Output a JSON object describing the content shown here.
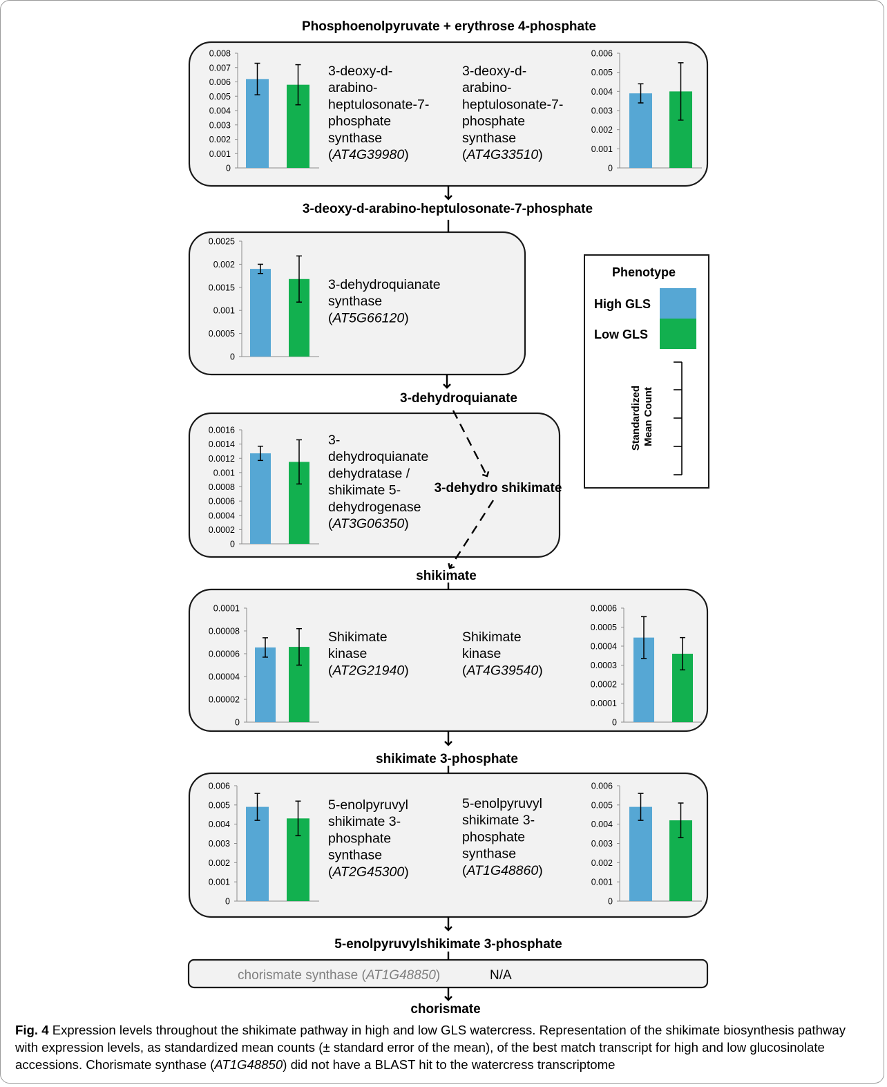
{
  "colors": {
    "high": "#56a7d4",
    "low": "#12b04f",
    "panel_bg": "#f2f2f2",
    "panel_border": "#1a1a1a",
    "unavailable_text": "#7f7f7f"
  },
  "pathway": {
    "start": "Phosphoenolpyruvate +  erythrose 4-phosphate",
    "dahp": "3-deoxy-d-arabino-heptulosonate-7-phosphate",
    "dhq": "3-dehydroquianate",
    "dhs": "3-dehydro shikimate",
    "shikimate": "shikimate",
    "s3p": "shikimate 3-phosphate",
    "eps3p": "5-enolpyruvylshikimate 3-phosphate",
    "end": "chorismate"
  },
  "legend": {
    "title": "Phenotype",
    "high_label": "High GLS",
    "low_label": "Low GLS",
    "scale_label_line1": "Standardized",
    "scale_label_line2": "Mean Count"
  },
  "chorismate": {
    "enzyme": "chorismate synthase (",
    "gene": "AT1G48850",
    "close": ")",
    "value": "N/A"
  },
  "caption": {
    "label": "Fig. 4",
    "text_a": " Expression levels throughout the shikimate pathway in high and low GLS watercress. Representation of the shikimate biosynthesis pathway with expression levels, as standardized mean counts (± standard error of the mean), of the best match transcript for high and low glucosinolate accessions. Chorismate synthase (",
    "gene": "AT1G48850",
    "text_b": ") did not have a BLAST hit to the watercress transcriptome"
  },
  "chart_data": [
    {
      "type": "bar",
      "enzyme": [
        "3-deoxy-d-",
        "arabino-",
        "heptulosonate-7-",
        "phosphate",
        "synthase"
      ],
      "gene": "AT4G39980",
      "categories": [
        "High GLS",
        "Low GLS"
      ],
      "values": [
        0.0062,
        0.0058
      ],
      "errors": [
        0.0011,
        0.0014
      ],
      "ylim": [
        0,
        0.008
      ],
      "yticks": [
        "0",
        "0.001",
        "0.002",
        "0.003",
        "0.004",
        "0.005",
        "0.006",
        "0.007",
        "0.008"
      ]
    },
    {
      "type": "bar",
      "enzyme": [
        "3-deoxy-d-",
        "arabino-",
        "heptulosonate-7-",
        "phosphate",
        "synthase"
      ],
      "gene": "AT4G33510",
      "categories": [
        "High GLS",
        "Low GLS"
      ],
      "values": [
        0.0039,
        0.004
      ],
      "errors": [
        0.0005,
        0.0015
      ],
      "ylim": [
        0,
        0.006
      ],
      "yticks": [
        "0",
        "0.001",
        "0.002",
        "0.003",
        "0.004",
        "0.005",
        "0.006"
      ]
    },
    {
      "type": "bar",
      "enzyme": [
        "3-dehydroquianate",
        "synthase"
      ],
      "gene": "AT5G66120",
      "categories": [
        "High GLS",
        "Low GLS"
      ],
      "values": [
        0.0019,
        0.00168
      ],
      "errors": [
        0.0001,
        0.0005
      ],
      "ylim": [
        0,
        0.0025
      ],
      "yticks": [
        "0",
        "0.0005",
        "0.001",
        "0.0015",
        "0.002",
        "0.0025"
      ]
    },
    {
      "type": "bar",
      "enzyme": [
        "3-",
        "dehydroquianate",
        "dehydratase /",
        "shikimate 5-",
        "dehydrogenase"
      ],
      "gene": "AT3G06350",
      "categories": [
        "High GLS",
        "Low GLS"
      ],
      "values": [
        0.00127,
        0.00115
      ],
      "errors": [
        0.0001,
        0.00031
      ],
      "ylim": [
        0,
        0.0016
      ],
      "yticks": [
        "0",
        "0.0002",
        "0.0004",
        "0.0006",
        "0.0008",
        "0.001",
        "0.0012",
        "0.0014",
        "0.0016"
      ]
    },
    {
      "type": "bar",
      "enzyme": [
        "Shikimate",
        "kinase"
      ],
      "gene": "AT2G21940",
      "categories": [
        "High GLS",
        "Low GLS"
      ],
      "values": [
        6.55e-05,
        6.6e-05
      ],
      "errors": [
        8.5e-06,
        1.6e-05
      ],
      "ylim": [
        0,
        0.0001
      ],
      "yticks": [
        "0",
        "0.00002",
        "0.00004",
        "0.00006",
        "0.00008",
        "0.0001"
      ]
    },
    {
      "type": "bar",
      "enzyme": [
        "Shikimate",
        "kinase"
      ],
      "gene": "AT4G39540",
      "categories": [
        "High GLS",
        "Low GLS"
      ],
      "values": [
        0.000445,
        0.00036
      ],
      "errors": [
        0.00011,
        8.5e-05
      ],
      "ylim": [
        0,
        0.0006
      ],
      "yticks": [
        "0",
        "0.0001",
        "0.0002",
        "0.0003",
        "0.0004",
        "0.0005",
        "0.0006"
      ]
    },
    {
      "type": "bar",
      "enzyme": [
        "5-enolpyruvyl",
        "shikimate 3-",
        "phosphate",
        "synthase"
      ],
      "gene": "AT2G45300",
      "categories": [
        "High GLS",
        "Low GLS"
      ],
      "values": [
        0.0049,
        0.0043
      ],
      "errors": [
        0.0007,
        0.0009
      ],
      "ylim": [
        0,
        0.006
      ],
      "yticks": [
        "0",
        "0.001",
        "0.002",
        "0.003",
        "0.004",
        "0.005",
        "0.006"
      ]
    },
    {
      "type": "bar",
      "enzyme": [
        "5-enolpyruvyl",
        "shikimate 3-",
        "phosphate",
        "synthase"
      ],
      "gene": "AT1G48860",
      "categories": [
        "High GLS",
        "Low GLS"
      ],
      "values": [
        0.0049,
        0.0042
      ],
      "errors": [
        0.0007,
        0.0009
      ],
      "ylim": [
        0,
        0.006
      ],
      "yticks": [
        "0",
        "0.001",
        "0.002",
        "0.003",
        "0.004",
        "0.005",
        "0.006"
      ]
    }
  ]
}
